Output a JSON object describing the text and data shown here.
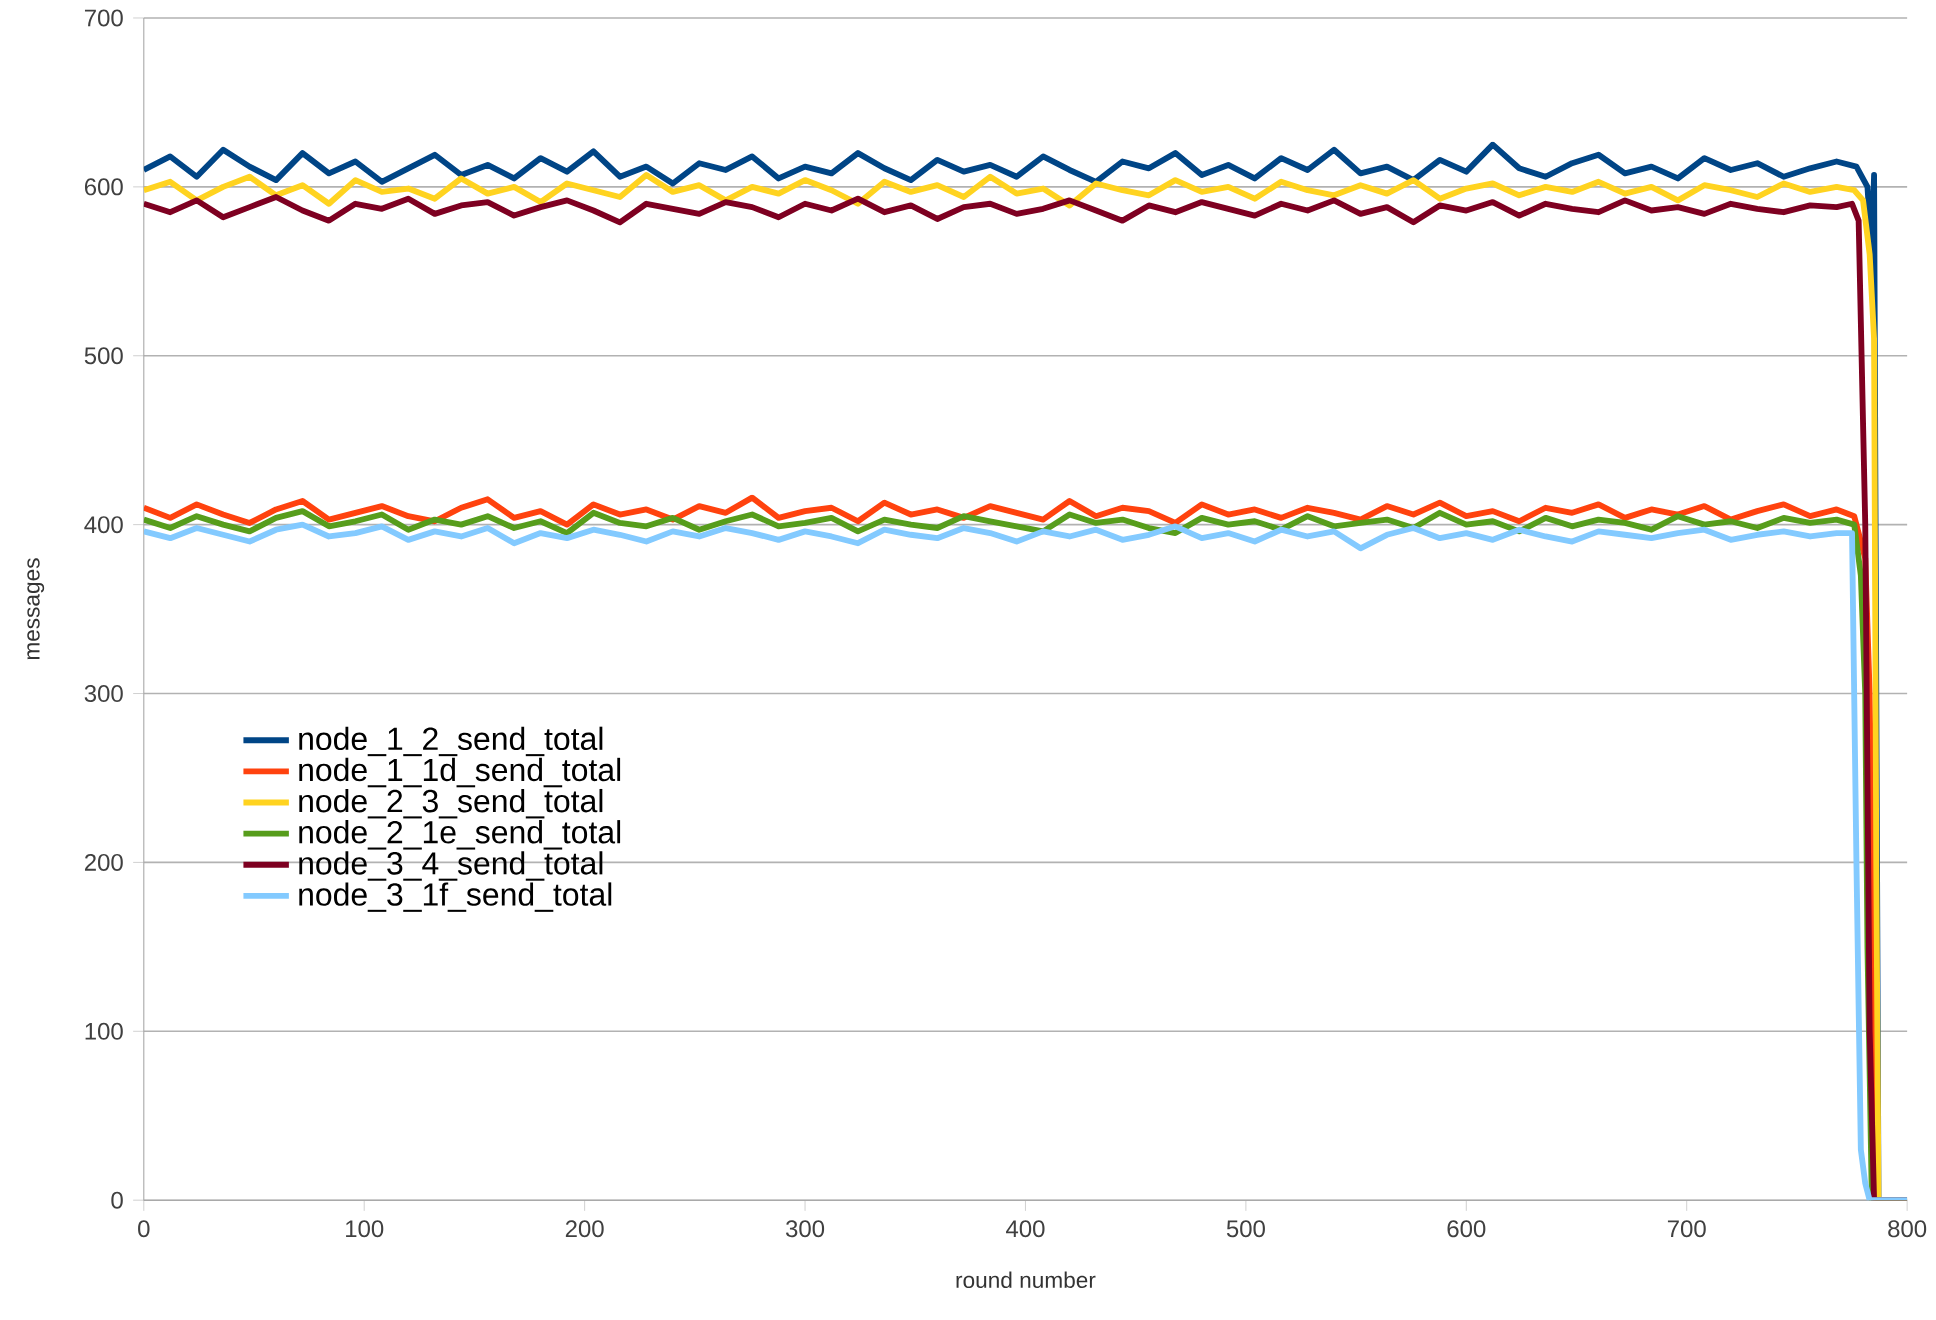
{
  "chart_data": {
    "type": "line",
    "xlabel": "round number",
    "ylabel": "messages",
    "xlim": [
      0,
      800
    ],
    "ylim": [
      0,
      700
    ],
    "xticks": [
      0,
      100,
      200,
      300,
      400,
      500,
      600,
      700,
      800
    ],
    "yticks": [
      0,
      100,
      200,
      300,
      400,
      500,
      600,
      700
    ],
    "grid": "y",
    "legend": "left",
    "marker": "none",
    "line_style": "solid",
    "series": [
      {
        "name": "node_1_2_send_total",
        "color": "#004586",
        "x": [
          0,
          12,
          24,
          36,
          48,
          60,
          72,
          84,
          96,
          108,
          120,
          132,
          144,
          156,
          168,
          180,
          192,
          204,
          216,
          228,
          240,
          252,
          264,
          276,
          288,
          300,
          312,
          324,
          336,
          348,
          360,
          372,
          384,
          396,
          408,
          420,
          432,
          444,
          456,
          468,
          480,
          492,
          504,
          516,
          528,
          540,
          552,
          564,
          576,
          588,
          600,
          612,
          624,
          636,
          648,
          660,
          672,
          684,
          696,
          708,
          720,
          732,
          744,
          756,
          768,
          777,
          782,
          784,
          785,
          787,
          800
        ],
        "values": [
          610,
          618,
          606,
          622,
          612,
          604,
          620,
          608,
          615,
          603,
          611,
          619,
          607,
          613,
          605,
          617,
          609,
          621,
          606,
          612,
          602,
          614,
          610,
          618,
          605,
          612,
          608,
          620,
          611,
          604,
          616,
          609,
          613,
          606,
          618,
          610,
          603,
          615,
          611,
          620,
          607,
          613,
          605,
          617,
          610,
          622,
          608,
          612,
          604,
          616,
          609,
          625,
          611,
          606,
          614,
          619,
          608,
          612,
          605,
          617,
          610,
          614,
          606,
          611,
          615,
          612,
          600,
          560,
          607,
          0,
          0
        ]
      },
      {
        "name": "node_1_1d_send_total",
        "color": "#ff420e",
        "x": [
          0,
          12,
          24,
          36,
          48,
          60,
          72,
          84,
          96,
          108,
          120,
          132,
          144,
          156,
          168,
          180,
          192,
          204,
          216,
          228,
          240,
          252,
          264,
          276,
          288,
          300,
          312,
          324,
          336,
          348,
          360,
          372,
          384,
          396,
          408,
          420,
          432,
          444,
          456,
          468,
          480,
          492,
          504,
          516,
          528,
          540,
          552,
          564,
          576,
          588,
          600,
          612,
          624,
          636,
          648,
          660,
          672,
          684,
          696,
          708,
          720,
          732,
          744,
          756,
          768,
          776,
          779,
          781,
          783,
          784,
          785,
          786,
          800
        ],
        "values": [
          410,
          404,
          412,
          406,
          401,
          409,
          414,
          403,
          407,
          411,
          405,
          402,
          410,
          415,
          404,
          408,
          400,
          412,
          406,
          409,
          403,
          411,
          407,
          416,
          404,
          408,
          410,
          402,
          413,
          406,
          409,
          404,
          411,
          407,
          403,
          414,
          405,
          410,
          408,
          401,
          412,
          406,
          409,
          404,
          410,
          407,
          403,
          411,
          406,
          413,
          405,
          408,
          402,
          410,
          407,
          412,
          404,
          409,
          406,
          411,
          403,
          408,
          412,
          405,
          409,
          405,
          390,
          380,
          300,
          200,
          80,
          0,
          0
        ]
      },
      {
        "name": "node_2_3_send_total",
        "color": "#ffd320",
        "x": [
          0,
          12,
          24,
          36,
          48,
          60,
          72,
          84,
          96,
          108,
          120,
          132,
          144,
          156,
          168,
          180,
          192,
          204,
          216,
          228,
          240,
          252,
          264,
          276,
          288,
          300,
          312,
          324,
          336,
          348,
          360,
          372,
          384,
          396,
          408,
          420,
          432,
          444,
          456,
          468,
          480,
          492,
          504,
          516,
          528,
          540,
          552,
          564,
          576,
          588,
          600,
          612,
          624,
          636,
          648,
          660,
          672,
          684,
          696,
          708,
          720,
          732,
          744,
          756,
          768,
          776,
          780,
          783,
          785,
          786,
          787,
          800
        ],
        "values": [
          598,
          603,
          592,
          600,
          606,
          595,
          601,
          590,
          604,
          597,
          599,
          593,
          605,
          596,
          600,
          591,
          602,
          598,
          594,
          607,
          597,
          601,
          592,
          600,
          596,
          604,
          598,
          590,
          603,
          597,
          601,
          594,
          606,
          596,
          599,
          589,
          602,
          598,
          595,
          604,
          597,
          600,
          593,
          603,
          598,
          595,
          601,
          596,
          604,
          593,
          599,
          602,
          595,
          600,
          597,
          603,
          596,
          600,
          592,
          601,
          598,
          594,
          602,
          597,
          600,
          598,
          592,
          560,
          510,
          200,
          0,
          0
        ]
      },
      {
        "name": "node_2_1e_send_total",
        "color": "#579d1c",
        "x": [
          0,
          12,
          24,
          36,
          48,
          60,
          72,
          84,
          96,
          108,
          120,
          132,
          144,
          156,
          168,
          180,
          192,
          204,
          216,
          228,
          240,
          252,
          264,
          276,
          288,
          300,
          312,
          324,
          336,
          348,
          360,
          372,
          384,
          396,
          408,
          420,
          432,
          444,
          456,
          468,
          480,
          492,
          504,
          516,
          528,
          540,
          552,
          564,
          576,
          588,
          600,
          612,
          624,
          636,
          648,
          660,
          672,
          684,
          696,
          708,
          720,
          732,
          744,
          756,
          768,
          776,
          779,
          781,
          782,
          784,
          800
        ],
        "values": [
          403,
          398,
          405,
          400,
          396,
          404,
          408,
          399,
          402,
          406,
          397,
          403,
          400,
          405,
          398,
          402,
          395,
          407,
          401,
          399,
          404,
          397,
          402,
          406,
          399,
          401,
          404,
          396,
          403,
          400,
          398,
          405,
          402,
          399,
          396,
          406,
          401,
          403,
          398,
          395,
          404,
          400,
          402,
          397,
          405,
          399,
          401,
          403,
          398,
          407,
          400,
          402,
          396,
          404,
          399,
          403,
          401,
          397,
          405,
          400,
          402,
          398,
          404,
          401,
          403,
          400,
          370,
          300,
          150,
          0,
          0
        ]
      },
      {
        "name": "node_3_4_send_total",
        "color": "#7e0021",
        "x": [
          0,
          12,
          24,
          36,
          48,
          60,
          72,
          84,
          96,
          108,
          120,
          132,
          144,
          156,
          168,
          180,
          192,
          204,
          216,
          228,
          240,
          252,
          264,
          276,
          288,
          300,
          312,
          324,
          336,
          348,
          360,
          372,
          384,
          396,
          408,
          420,
          432,
          444,
          456,
          468,
          480,
          492,
          504,
          516,
          528,
          540,
          552,
          564,
          576,
          588,
          600,
          612,
          624,
          636,
          648,
          660,
          672,
          684,
          696,
          708,
          720,
          732,
          744,
          756,
          768,
          775,
          778,
          781,
          783,
          785,
          800
        ],
        "values": [
          590,
          585,
          592,
          582,
          588,
          594,
          586,
          580,
          590,
          587,
          593,
          584,
          589,
          591,
          583,
          588,
          592,
          586,
          579,
          590,
          587,
          584,
          591,
          588,
          582,
          590,
          586,
          593,
          585,
          589,
          581,
          588,
          590,
          584,
          587,
          592,
          586,
          580,
          589,
          585,
          591,
          587,
          583,
          590,
          586,
          592,
          584,
          588,
          579,
          589,
          586,
          591,
          583,
          590,
          587,
          585,
          592,
          586,
          588,
          584,
          590,
          587,
          585,
          589,
          588,
          590,
          580,
          400,
          100,
          0,
          0
        ]
      },
      {
        "name": "node_3_1f_send_total",
        "color": "#83caff",
        "x": [
          0,
          12,
          24,
          36,
          48,
          60,
          72,
          84,
          96,
          108,
          120,
          132,
          144,
          156,
          168,
          180,
          192,
          204,
          216,
          228,
          240,
          252,
          264,
          276,
          288,
          300,
          312,
          324,
          336,
          348,
          360,
          372,
          384,
          396,
          408,
          420,
          432,
          444,
          456,
          468,
          480,
          492,
          504,
          516,
          528,
          540,
          552,
          564,
          576,
          588,
          600,
          612,
          624,
          636,
          648,
          660,
          672,
          684,
          696,
          708,
          720,
          732,
          744,
          756,
          768,
          775,
          777,
          779,
          781,
          783,
          800
        ],
        "values": [
          396,
          392,
          398,
          394,
          390,
          397,
          400,
          393,
          395,
          399,
          391,
          396,
          393,
          398,
          389,
          395,
          392,
          397,
          394,
          390,
          396,
          393,
          398,
          395,
          391,
          396,
          393,
          389,
          397,
          394,
          392,
          398,
          395,
          390,
          396,
          393,
          397,
          391,
          394,
          399,
          392,
          395,
          390,
          397,
          393,
          396,
          386,
          394,
          398,
          392,
          395,
          391,
          397,
          393,
          390,
          396,
          394,
          392,
          395,
          397,
          391,
          394,
          396,
          393,
          395,
          395,
          200,
          30,
          10,
          0,
          0
        ]
      }
    ]
  }
}
